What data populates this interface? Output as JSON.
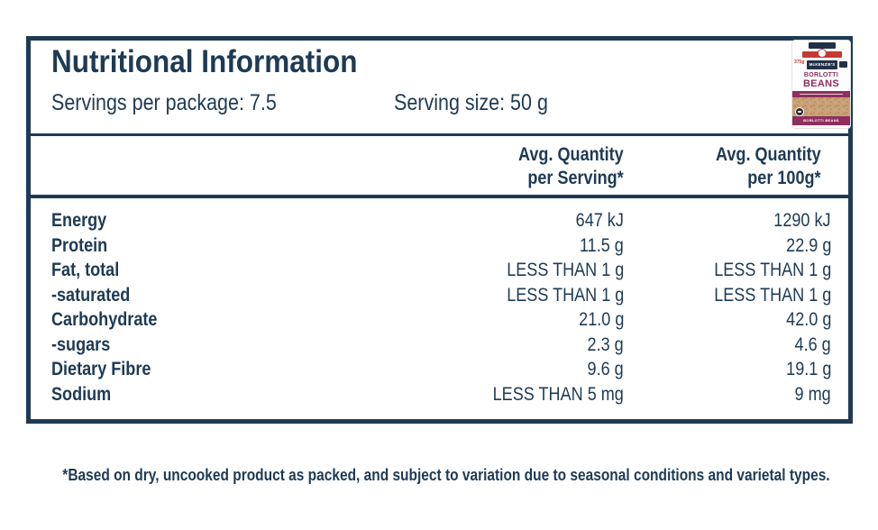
{
  "panel": {
    "title": "Nutritional Information",
    "servings_per_package": "Servings per package: 7.5",
    "serving_size": "Serving size: 50 g"
  },
  "table": {
    "headers": {
      "col1": {
        "line1": "Avg. Quantity",
        "line2": "per Serving*"
      },
      "col2": {
        "line1": "Avg. Quantity",
        "line2": "per 100g*"
      }
    },
    "rows": [
      {
        "label": "Energy",
        "per_serving": "647 kJ",
        "per_100g": "1290 kJ"
      },
      {
        "label": "Protein",
        "per_serving": "11.5 g",
        "per_100g": "22.9 g"
      },
      {
        "label": "Fat, total",
        "per_serving": "LESS THAN 1 g",
        "per_100g": "LESS THAN 1 g"
      },
      {
        "label": "-saturated",
        "per_serving": "LESS THAN 1 g",
        "per_100g": "LESS THAN 1 g"
      },
      {
        "label": "Carbohydrate",
        "per_serving": "21.0 g",
        "per_100g": "42.0 g"
      },
      {
        "label": "-sugars",
        "per_serving": "2.3 g",
        "per_100g": "4.6 g"
      },
      {
        "label": "Dietary Fibre",
        "per_serving": "9.6 g",
        "per_100g": "19.1 g"
      },
      {
        "label": "Sodium",
        "per_serving": "LESS THAN 5 mg",
        "per_100g": "9 mg"
      }
    ]
  },
  "footnote": "*Based on dry, uncooked product as packed, and subject to variation due to seasonal conditions and varietal types.",
  "product": {
    "brand": "McKENZIE'S",
    "weight": "375g",
    "name_line1": "BORLOTTI",
    "name_line2": "BEANS",
    "bottom_label": "BORLOTTI BEANS"
  },
  "colors": {
    "navy": "#1e3a54",
    "maroon": "#8e2f5f",
    "ribbon_red": "#c23a33",
    "beans_tan": "#c9a176"
  }
}
